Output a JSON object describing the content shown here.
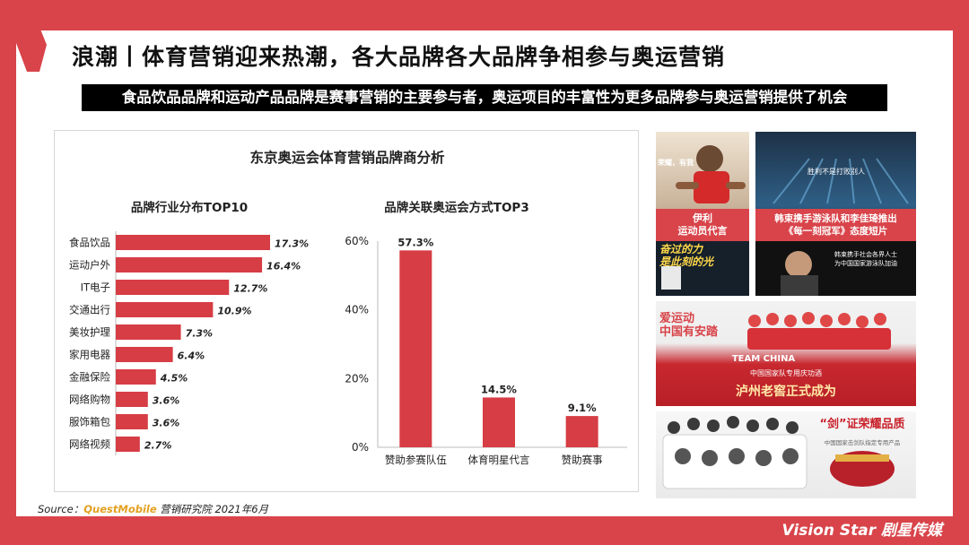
{
  "page": {
    "title": "浪潮丨体育营销迎来热潮，各大品牌各大品牌争相参与奥运营销",
    "subtitle": "食品饮品品牌和运动产品品牌是赛事营销的主要参与者，奥运项目的丰富性为更多品牌参与奥运营销提供了机会",
    "source_prefix": "Source：",
    "source_brand": "QuestMobile",
    "source_suffix": " 营销研究院  2021年6月",
    "brand_logo": "Vision Star 剧星传媒"
  },
  "colors": {
    "accent": "#d8444a",
    "bar": "#d63d44",
    "subtitle_bg": "#000000"
  },
  "chart_data": [
    {
      "type": "bar",
      "orientation": "horizontal",
      "title": "品牌行业分布TOP10",
      "categories": [
        "食品饮品",
        "运动户外",
        "IT电子",
        "交通出行",
        "美妆护理",
        "家用电器",
        "金融保险",
        "网络购物",
        "服饰箱包",
        "网络视频"
      ],
      "values": [
        17.3,
        16.4,
        12.7,
        10.9,
        7.3,
        6.4,
        4.5,
        3.6,
        3.6,
        2.7
      ],
      "value_labels": [
        "17.3%",
        "16.4%",
        "12.7%",
        "10.9%",
        "7.3%",
        "6.4%",
        "4.5%",
        "3.6%",
        "3.6%",
        "2.7%"
      ],
      "unit": "%",
      "grid": false
    },
    {
      "type": "bar",
      "orientation": "vertical",
      "title": "品牌关联奥运会方式TOP3",
      "categories": [
        "赞助参赛队伍",
        "体育明星代言",
        "赞助赛事"
      ],
      "values": [
        57.3,
        14.5,
        9.1
      ],
      "value_labels": [
        "57.3%",
        "14.5%",
        "9.1%"
      ],
      "ylim": [
        0,
        60
      ],
      "yticks": [
        "0%",
        "20%",
        "40%",
        "60%"
      ],
      "grid": false
    }
  ],
  "chart_panel": {
    "title": "东京奥运会体育营销品牌商分析"
  },
  "photos": [
    {
      "caption": "伊利\n运动员代言",
      "overlay": "荣耀，有我",
      "poster_text": "奋过的力\n是此刻的光"
    },
    {
      "caption": "韩束携手游泳队和李佳琦推出\n《每一刻冠军》态度短片",
      "overlay": "胜利不是打败别人",
      "poster_text": "韩束携手社会各界人士\n为中国国家游泳队加油"
    },
    {
      "overlay": "爱运动\n中国有安踏",
      "caption": "TEAM CHINA",
      "sub": "中国国家队专用庆功酒",
      "banner": "泸州老窖正式成为"
    },
    {
      "caption": "“剑”证荣耀品质",
      "sub": "中国国家击剑队指定专用产品"
    }
  ]
}
